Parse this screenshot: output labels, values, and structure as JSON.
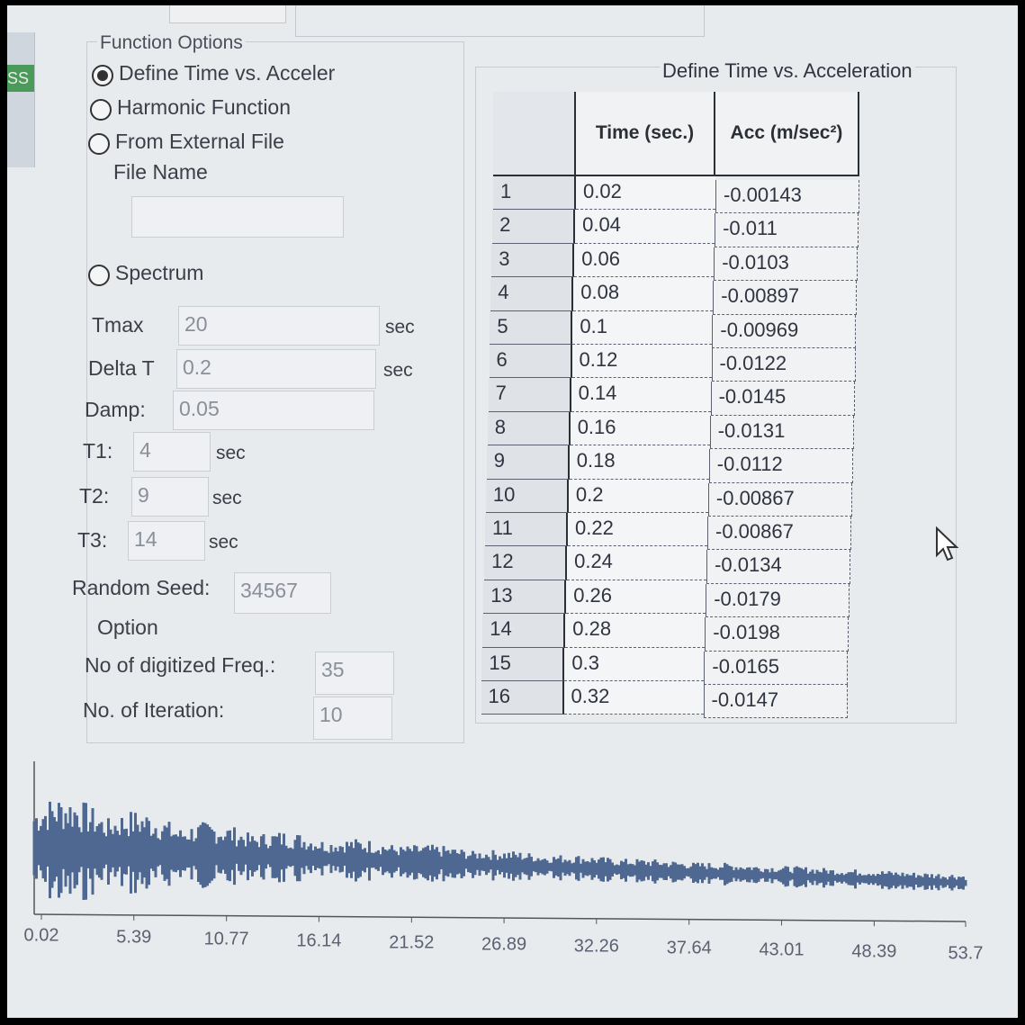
{
  "sidebar_tab": "SS",
  "function_options": {
    "title": "Function Options",
    "options": [
      {
        "label": "Define Time vs. Acceler",
        "selected": true
      },
      {
        "label": "Harmonic Function",
        "selected": false
      },
      {
        "label": "From External File",
        "selected": false
      }
    ],
    "file_name_label": "File Name",
    "spectrum": {
      "label": "Spectrum",
      "selected": false
    }
  },
  "fields": [
    {
      "label": "Tmax",
      "value": 20,
      "unit": "sec"
    },
    {
      "label": "Delta T",
      "value": 0.2,
      "unit": "sec"
    },
    {
      "label": "Damp:",
      "value": 0.05
    },
    {
      "label": "T1:",
      "value": 4,
      "unit": "sec"
    },
    {
      "label": "T2:",
      "value": 9,
      "unit": "sec"
    },
    {
      "label": "T3:",
      "value": 14,
      "unit": "sec"
    }
  ],
  "random_seed": {
    "label": "Random Seed:",
    "value": 34567
  },
  "option": {
    "title": "Option",
    "fields": [
      {
        "label": "No of digitized Freq.:",
        "value": 35
      },
      {
        "label": "No. of Iteration:",
        "value": 10
      }
    ]
  },
  "table": {
    "title": "Define Time vs. Acceleration",
    "headers": [
      "Time (sec.)",
      "Acc (m/sec²)"
    ],
    "rows": [
      [
        1,
        0.02,
        -0.00143
      ],
      [
        2,
        0.04,
        -0.011
      ],
      [
        3,
        0.06,
        -0.0103
      ],
      [
        4,
        0.08,
        -0.00897
      ],
      [
        5,
        0.1,
        -0.00969
      ],
      [
        6,
        0.12,
        -0.0122
      ],
      [
        7,
        0.14,
        -0.0145
      ],
      [
        8,
        0.16,
        -0.0131
      ],
      [
        9,
        0.18,
        -0.0112
      ],
      [
        10,
        0.2,
        -0.00867
      ],
      [
        11,
        0.22,
        -0.00867
      ],
      [
        12,
        0.24,
        -0.0134
      ],
      [
        13,
        0.26,
        -0.0179
      ],
      [
        14,
        0.28,
        -0.0198
      ],
      [
        15,
        0.3,
        -0.0165
      ],
      [
        16,
        0.32,
        -0.0147
      ]
    ]
  },
  "plot": {
    "xlim": [
      0.02,
      53.7
    ],
    "xticks": [
      0.02,
      5.39,
      10.77,
      16.14,
      21.52,
      26.89,
      32.26,
      37.64,
      43.01,
      48.39,
      53.7
    ]
  }
}
